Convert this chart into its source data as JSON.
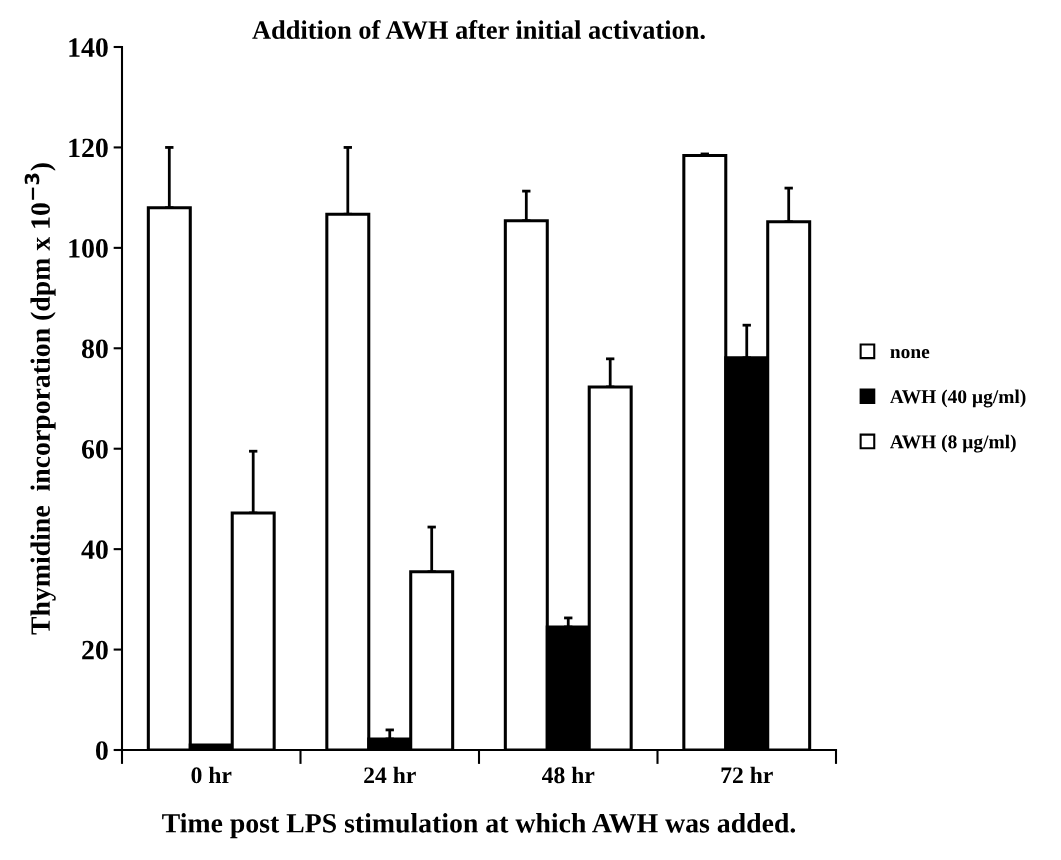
{
  "chart_data": {
    "type": "bar",
    "title": "Addition of AWH after initial activation.",
    "xlabel": "Time post LPS stimulation at which AWH was added.",
    "ylabel": "Thymidine  incorporation (dpm x 10$^{−3}$)",
    "categories": [
      "0 hr",
      "24 hr",
      "48 hr",
      "72 hr"
    ],
    "series": [
      {
        "name": "none",
        "color": "#ffffff",
        "values": [
          108,
          106.7,
          105.4,
          118.4
        ],
        "errors": [
          [
            108,
            120
          ],
          [
            106.7,
            120
          ],
          [
            105.4,
            111.3
          ],
          [
            118.4,
            118.7
          ]
        ]
      },
      {
        "name": "AWH (40 µg/ml)",
        "color": "#000000",
        "values": [
          1,
          2.2,
          24.5,
          78.1
        ],
        "errors": [
          null,
          [
            2.2,
            4
          ],
          [
            24.5,
            26.3
          ],
          [
            78.1,
            84.6
          ]
        ]
      },
      {
        "name": "AWH (8 µg/ml)",
        "color": "#ffffff",
        "values": [
          47.2,
          35.5,
          72.3,
          105.2
        ],
        "errors": [
          [
            47.2,
            59.5
          ],
          [
            35.5,
            44.4
          ],
          [
            72.3,
            77.9
          ],
          [
            105.2,
            111.9
          ]
        ]
      }
    ],
    "ylim": [
      0,
      140
    ],
    "yticks": [
      0,
      20,
      40,
      60,
      80,
      100,
      120,
      140
    ],
    "legend": "right",
    "grid": false
  }
}
